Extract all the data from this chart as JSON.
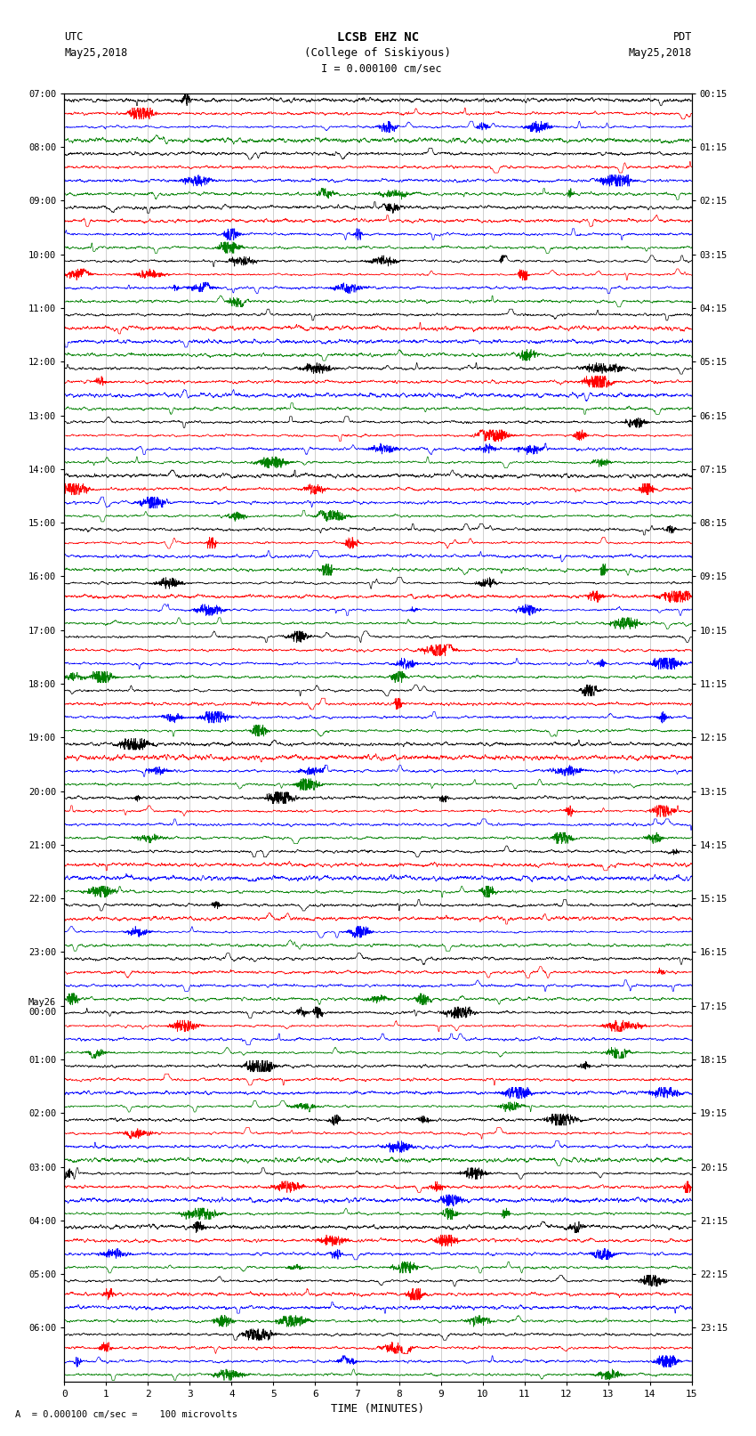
{
  "title_line1": "LCSB EHZ NC",
  "title_line2": "(College of Siskiyous)",
  "scale_text": " I = 0.000100 cm/sec",
  "left_header_line1": "UTC",
  "left_header_line2": "May25,2018",
  "right_header_line1": "PDT",
  "right_header_line2": "May25,2018",
  "xlabel": "TIME (MINUTES)",
  "bottom_note": "A  = 0.000100 cm/sec =    100 microvolts",
  "utc_labels": [
    "07:00",
    "08:00",
    "09:00",
    "10:00",
    "11:00",
    "12:00",
    "13:00",
    "14:00",
    "15:00",
    "16:00",
    "17:00",
    "18:00",
    "19:00",
    "20:00",
    "21:00",
    "22:00",
    "23:00",
    "May26\n00:00",
    "01:00",
    "02:00",
    "03:00",
    "04:00",
    "05:00",
    "06:00"
  ],
  "pdt_labels": [
    "00:15",
    "01:15",
    "02:15",
    "03:15",
    "04:15",
    "05:15",
    "06:15",
    "07:15",
    "08:15",
    "09:15",
    "10:15",
    "11:15",
    "12:15",
    "13:15",
    "14:15",
    "15:15",
    "16:15",
    "17:15",
    "18:15",
    "19:15",
    "20:15",
    "21:15",
    "22:15",
    "23:15"
  ],
  "num_rows": 96,
  "colors": [
    "black",
    "red",
    "blue",
    "green"
  ],
  "fig_width": 8.5,
  "fig_height": 16.13,
  "bg_color": "white",
  "trace_amplitude": 0.42,
  "time_minutes": 15,
  "samples_per_trace": 3000,
  "seed": 42
}
